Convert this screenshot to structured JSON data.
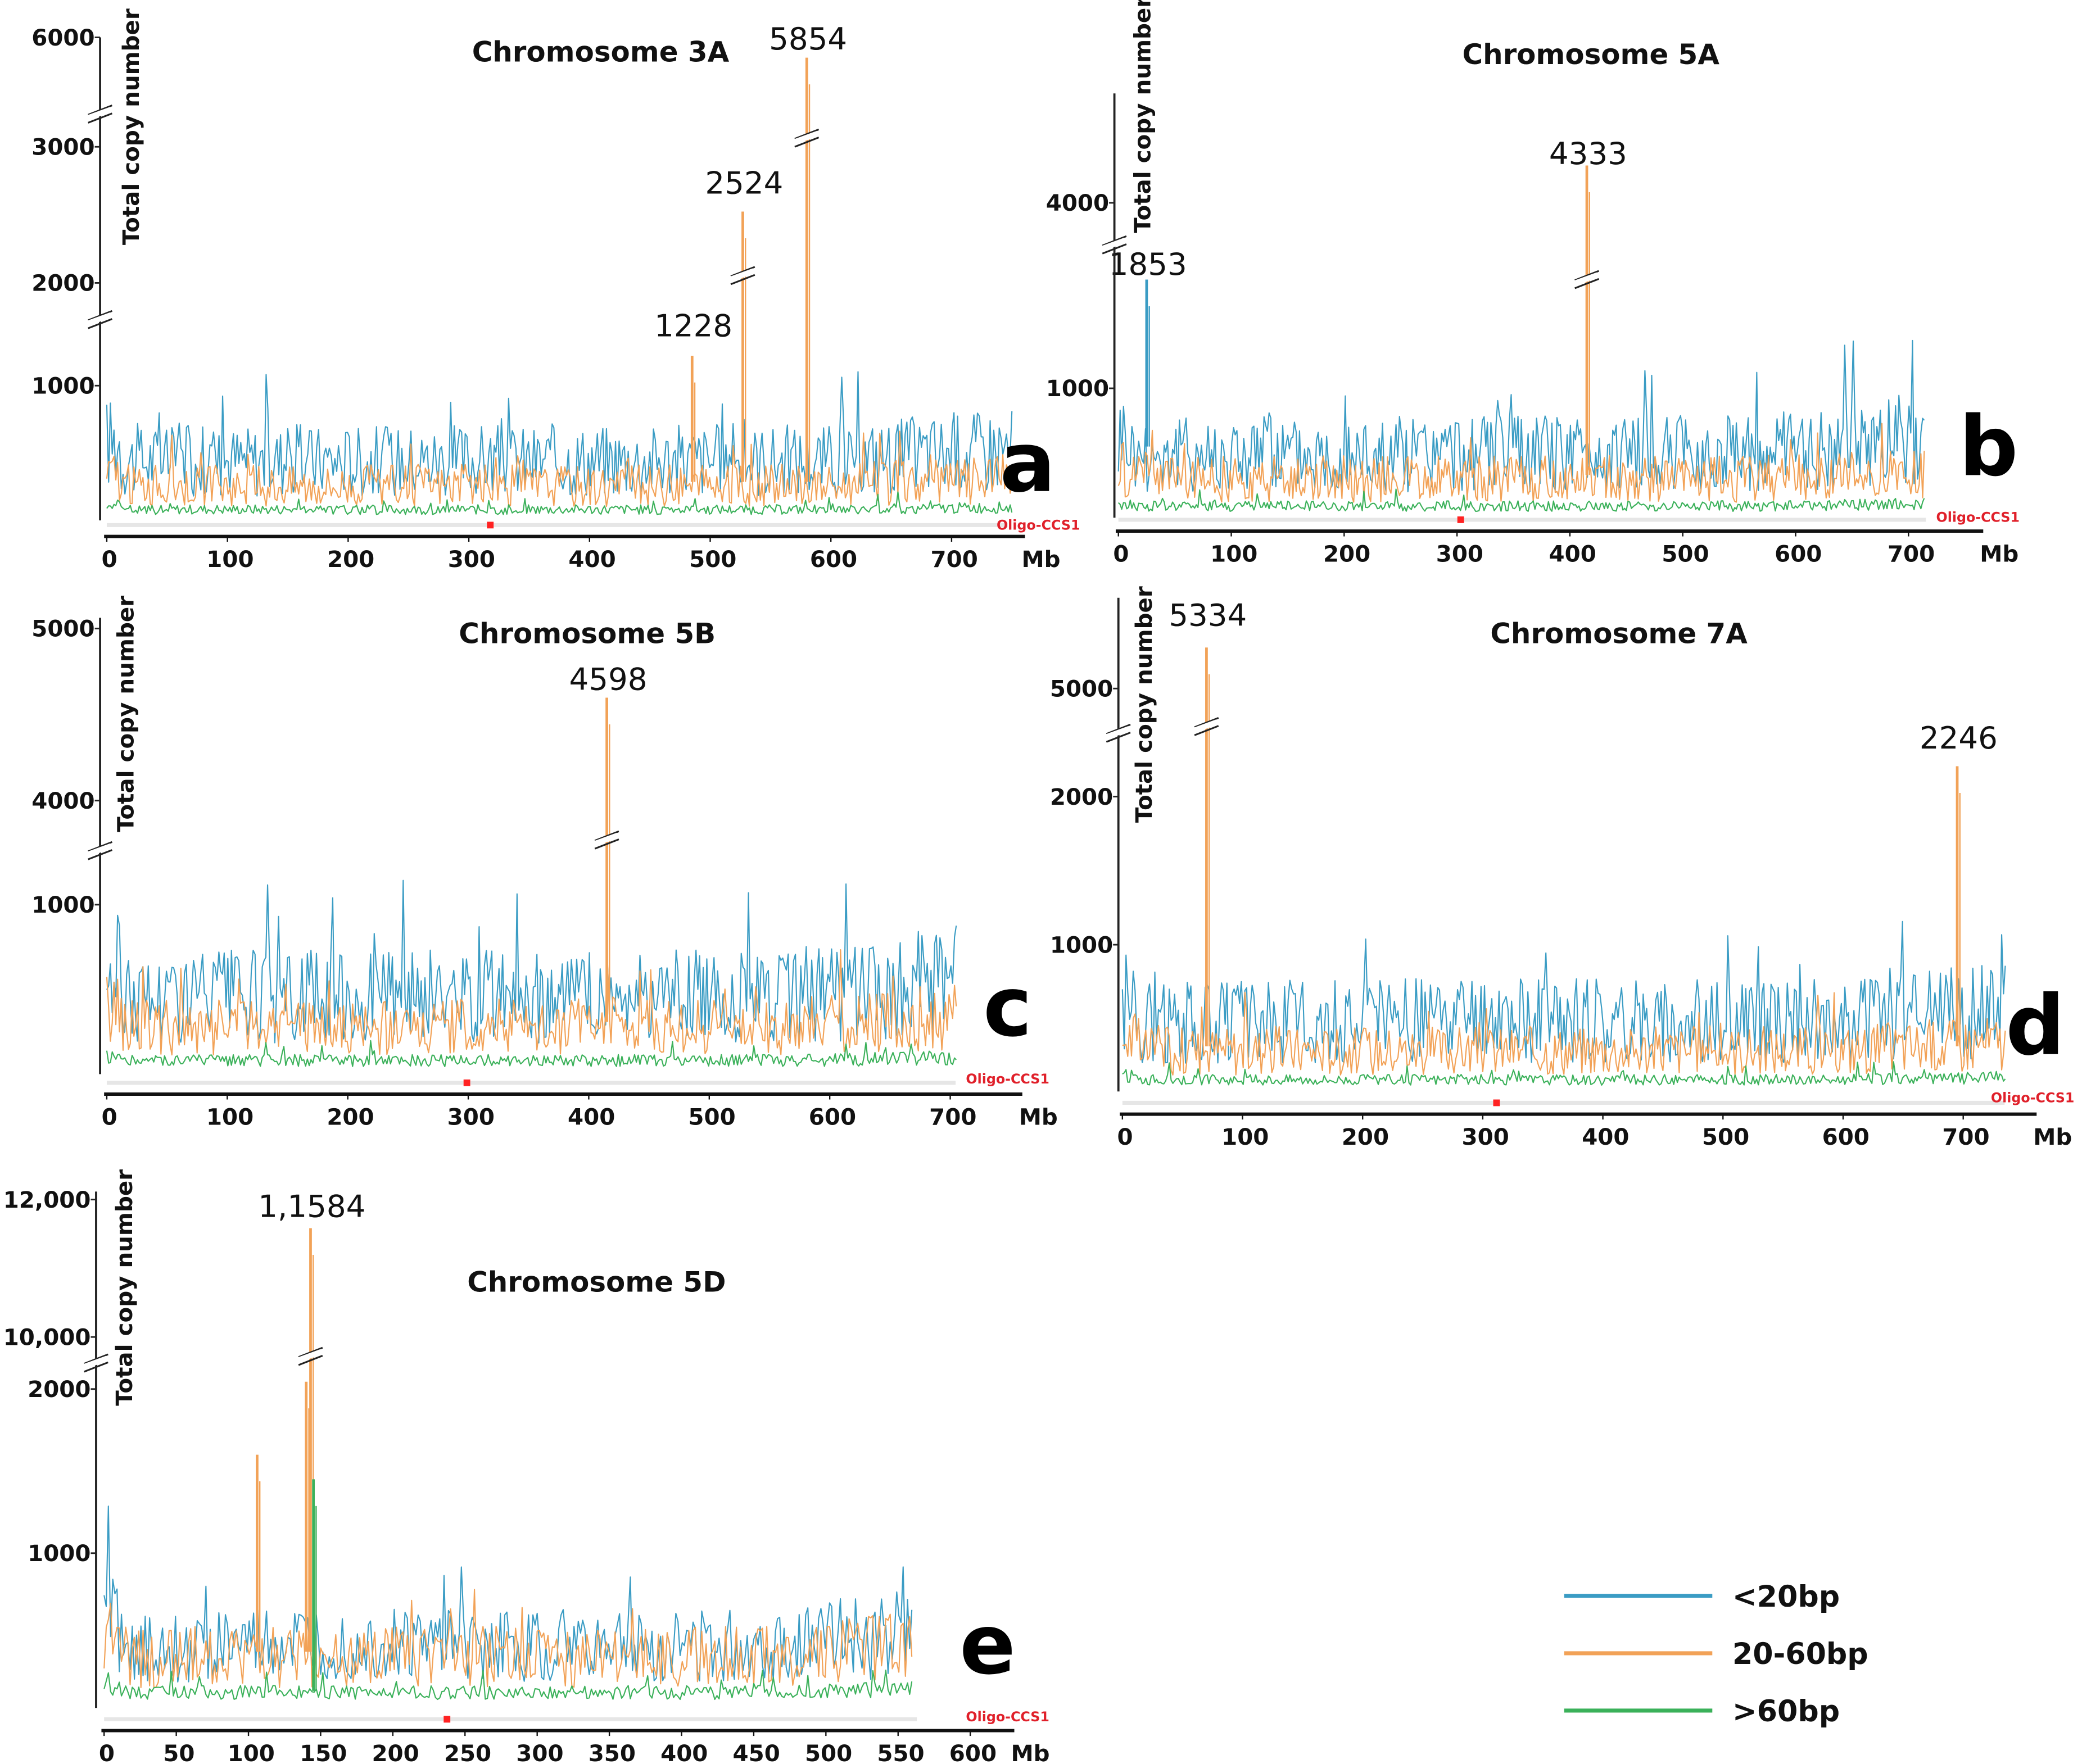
{
  "legend": [
    {
      "label": "<20bp",
      "color": "#3a9cc4"
    },
    {
      "label": "20-60bp",
      "color": "#f2a257"
    },
    {
      "label": ">60bp",
      "color": "#3bb15a"
    }
  ],
  "chart_data": [
    {
      "type": "line",
      "panel_label": "a",
      "title": "Chromosome 3A",
      "xlabel": "Mb",
      "ylabel": "Total copy number",
      "track_label": "Oligo-CCS1",
      "xlim": [
        0,
        750
      ],
      "xticks": [
        "0",
        "100",
        "200",
        "300",
        "400",
        "500",
        "600",
        "700"
      ],
      "yticks": [
        {
          "label": "1000",
          "value": 1000
        },
        {
          "label": "2000",
          "value": 2000
        },
        {
          "label": "3000",
          "value": 3000
        },
        {
          "label": "6000",
          "value": 6000
        }
      ],
      "axis_breaks": [
        [
          1500,
          1800
        ],
        [
          3300,
          5500
        ]
      ],
      "series_baseline": {
        "<20bp": 450,
        "20-60bp": 260,
        ">60bp": 80
      },
      "peaks": [
        {
          "label": "1228",
          "x": 485,
          "value": 1228,
          "series": "20-60bp"
        },
        {
          "label": "2524",
          "x": 527,
          "value": 2524,
          "series": "20-60bp"
        },
        {
          "label": "5854",
          "x": 580,
          "value": 5854,
          "series": "20-60bp"
        }
      ]
    },
    {
      "type": "line",
      "panel_label": "b",
      "title": "Chromosome 5A",
      "xlabel": "Mb",
      "ylabel": "Total copy number",
      "track_label": "Oligo-CCS1",
      "xlim": [
        0,
        715
      ],
      "xticks": [
        "0",
        "100",
        "200",
        "300",
        "400",
        "500",
        "600",
        "700"
      ],
      "yticks": [
        {
          "label": "1000",
          "value": 1000
        },
        {
          "label": "4000",
          "value": 4000
        }
      ],
      "axis_breaks": [
        [
          2000,
          3800
        ]
      ],
      "series_baseline": {
        "<20bp": 500,
        "20-60bp": 300,
        ">60bp": 90
      },
      "peaks": [
        {
          "label": "1853",
          "x": 25,
          "value": 1853,
          "series": "<20bp"
        },
        {
          "label": "4333",
          "x": 415,
          "value": 4333,
          "series": "20-60bp"
        }
      ]
    },
    {
      "type": "line",
      "panel_label": "c",
      "title": "Chromosome 5B",
      "xlabel": "Mb",
      "ylabel": "Total copy number",
      "track_label": "Oligo-CCS1",
      "xlim": [
        0,
        705
      ],
      "xticks": [
        "0",
        "100",
        "200",
        "300",
        "400",
        "500",
        "600",
        "700"
      ],
      "yticks": [
        {
          "label": "1000",
          "value": 1000
        },
        {
          "label": "4000",
          "value": 4000
        },
        {
          "label": "5000",
          "value": 5000
        }
      ],
      "axis_breaks": [
        [
          1300,
          3900
        ]
      ],
      "series_baseline": {
        "<20bp": 460,
        "20-60bp": 280,
        ">60bp": 80
      },
      "peaks": [
        {
          "label": "4598",
          "x": 415,
          "value": 4598,
          "series": "20-60bp"
        }
      ]
    },
    {
      "type": "line",
      "panel_label": "d",
      "title": "Chromosome 7A",
      "xlabel": "Mb",
      "ylabel": "Total copy number",
      "track_label": "Oligo-CCS1",
      "xlim": [
        0,
        735
      ],
      "xticks": [
        "0",
        "100",
        "200",
        "300",
        "400",
        "500",
        "600",
        "700"
      ],
      "yticks": [
        {
          "label": "1000",
          "value": 1000
        },
        {
          "label": "2000",
          "value": 2000
        },
        {
          "label": "5000",
          "value": 5000
        }
      ],
      "axis_breaks": [
        [
          2400,
          4900
        ]
      ],
      "series_baseline": {
        "<20bp": 480,
        "20-60bp": 280,
        ">60bp": 80
      },
      "peaks": [
        {
          "label": "5334",
          "x": 70,
          "value": 5334,
          "series": "20-60bp"
        },
        {
          "label": "2246",
          "x": 695,
          "value": 2246,
          "series": "20-60bp"
        }
      ]
    },
    {
      "type": "line",
      "panel_label": "e",
      "title": "Chromosome 5D",
      "xlabel": "Mb",
      "ylabel": "Total copy number",
      "track_label": "Oligo-CCS1",
      "xlim": [
        0,
        560
      ],
      "xticks": [
        "0",
        "50",
        "100",
        "150",
        "200",
        "250",
        "300",
        "350",
        "400",
        "450",
        "500",
        "550",
        "600"
      ],
      "yticks": [
        {
          "label": "1000",
          "value": 1000
        },
        {
          "label": "2000",
          "value": 2000
        },
        {
          "label": "10,000",
          "value": 10000
        },
        {
          "label": "12,000",
          "value": 12000
        }
      ],
      "axis_breaks": [
        [
          2100,
          9900
        ]
      ],
      "series_baseline": {
        "<20bp": 400,
        "20-60bp": 330,
        ">60bp": 100
      },
      "peaks": [
        {
          "label": "1,1584",
          "x": 143,
          "value": 11584,
          "series": "20-60bp"
        },
        {
          "label": "",
          "x": 106,
          "value": 1600,
          "series": "20-60bp"
        },
        {
          "label": "",
          "x": 140,
          "value": 2050,
          "series": "20-60bp"
        },
        {
          "label": "",
          "x": 145,
          "value": 1450,
          "series": ">60bp"
        }
      ]
    }
  ]
}
